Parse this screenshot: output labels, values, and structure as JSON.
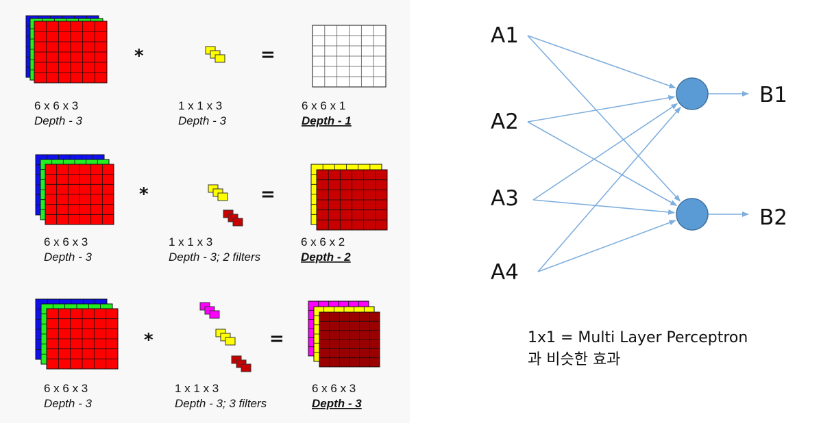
{
  "colors": {
    "blue": "#1010ee",
    "green": "#22ee22",
    "red": "#ff0000",
    "yellow": "#ffff00",
    "magenta": "#ff00ff",
    "dark_red": "#c80000",
    "maroon": "#9b0000",
    "grid_white": "#ffffff",
    "edge": "#7eaedd",
    "node": "#5b9bd5"
  },
  "rows": [
    {
      "input": {
        "size": "6 x 6 x 3",
        "depth": "Depth - 3"
      },
      "operator": "*",
      "filter": {
        "size": "1 x 1 x 3",
        "depth": "Depth - 3"
      },
      "equals": "=",
      "output": {
        "size": "6 x 6 x 1",
        "depth": "Depth - 1"
      }
    },
    {
      "input": {
        "size": "6 x 6 x 3",
        "depth": "Depth - 3"
      },
      "operator": "*",
      "filter": {
        "size": "1 x 1 x 3",
        "depth": "Depth - 3; 2 filters"
      },
      "equals": "=",
      "output": {
        "size": "6 x 6 x 2",
        "depth": "Depth - 2"
      }
    },
    {
      "input": {
        "size": "6 x 6 x 3",
        "depth": "Depth - 3"
      },
      "operator": "*",
      "filter": {
        "size": "1 x 1 x 3",
        "depth": "Depth - 3; 3 filters"
      },
      "equals": "=",
      "output": {
        "size": "6 x 6 x 3",
        "depth": "Depth - 3"
      }
    }
  ],
  "network": {
    "inputs": [
      "A1",
      "A2",
      "A3",
      "A4"
    ],
    "outputs": [
      "B1",
      "B2"
    ],
    "note_line1": "1x1 = Multi Layer Perceptron",
    "note_line2": "과 비슷한 효과"
  }
}
